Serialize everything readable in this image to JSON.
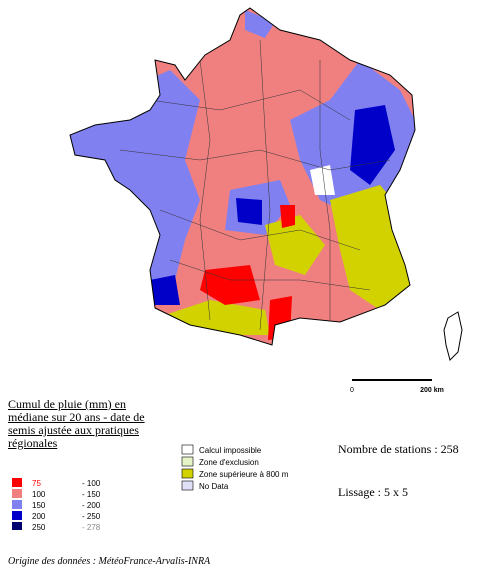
{
  "legend": {
    "title": "Cumul de pluie (mm) en médiane sur 20 ans - date de semis ajustée aux pratiques régionales",
    "classes": [
      {
        "from": "75",
        "to": "- 100",
        "color": "#ff0000"
      },
      {
        "from": "100",
        "to": "- 150",
        "color": "#f08080"
      },
      {
        "from": "150",
        "to": "- 200",
        "color": "#8080f0"
      },
      {
        "from": "200",
        "to": "- 250",
        "color": "#0000c8"
      },
      {
        "from": "250",
        "to": "- 278",
        "color": "#00006e"
      }
    ],
    "zones": [
      {
        "label": "Calcul impossible",
        "color": "#ffffff"
      },
      {
        "label": "Zone d'exclusion",
        "color": "#e6f5c8"
      },
      {
        "label": "Zone supérieure à 800 m",
        "color": "#d2d200"
      },
      {
        "label": "No Data",
        "color": "#e0e0f8"
      }
    ]
  },
  "stations": "Nombre de stations : 258",
  "smoothing": "Lissage : 5 x 5",
  "scale": {
    "start": "0",
    "end": "200 km"
  },
  "source": "Origine des données : MétéoFrance-Arvalis-INRA"
}
